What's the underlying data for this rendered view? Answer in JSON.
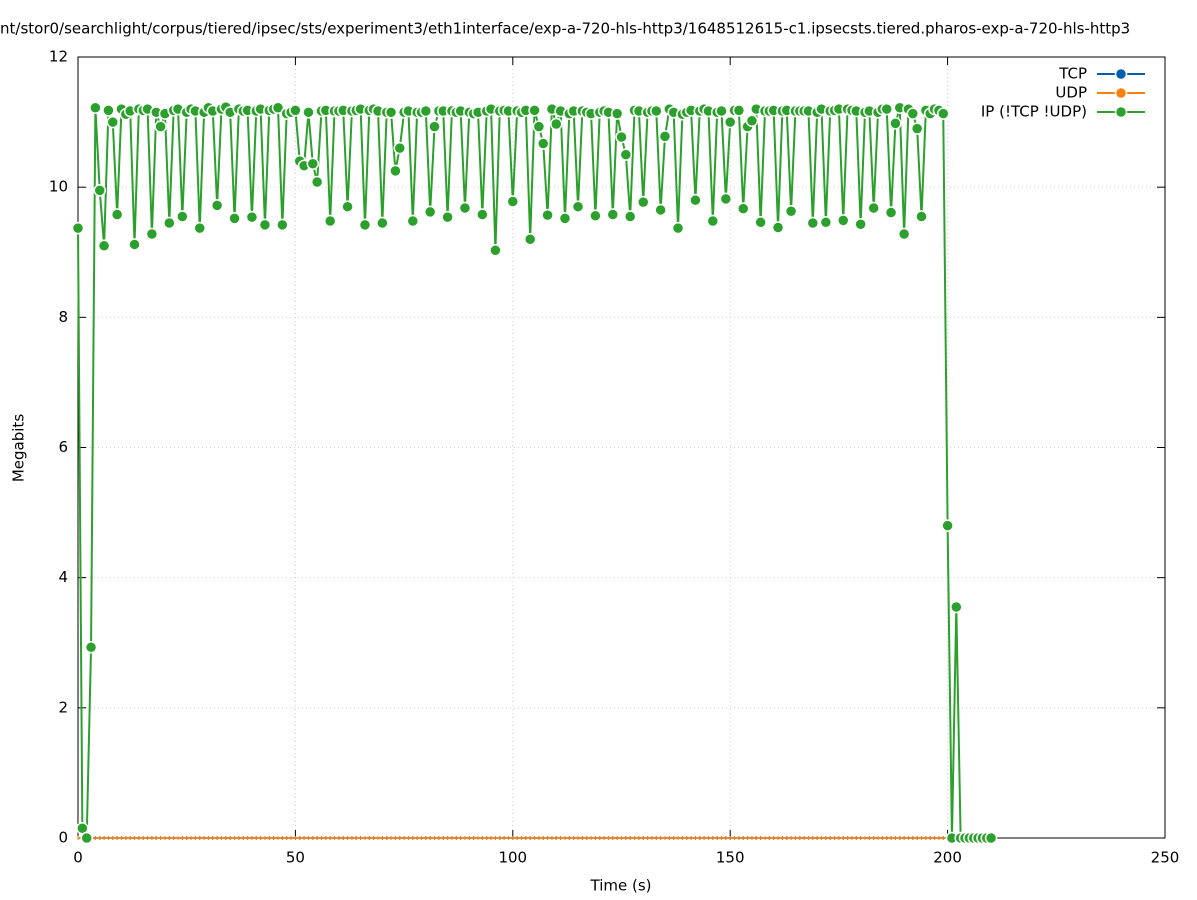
{
  "chart_data": {
    "type": "line",
    "title": "nt/stor0/searchlight/corpus/tiered/ipsec/sts/experiment3/eth1interface/exp-a-720-hls-http3/1648512615-c1.ipsecsts.tiered.pharos-exp-a-720-hls-http3",
    "xlabel": "Time (s)",
    "ylabel": "Megabits",
    "xlim": [
      0,
      250
    ],
    "xticks": [
      0,
      50,
      100,
      150,
      200,
      250
    ],
    "ylim": [
      0,
      12
    ],
    "yticks": [
      0,
      2,
      4,
      6,
      8,
      10,
      12
    ],
    "grid": true,
    "legend": "top-right",
    "x": [
      0,
      1,
      2,
      3,
      4,
      5,
      6,
      7,
      8,
      9,
      10,
      11,
      12,
      13,
      14,
      15,
      16,
      17,
      18,
      19,
      20,
      21,
      22,
      23,
      24,
      25,
      26,
      27,
      28,
      29,
      30,
      31,
      32,
      33,
      34,
      35,
      36,
      37,
      38,
      39,
      40,
      41,
      42,
      43,
      44,
      45,
      46,
      47,
      48,
      49,
      50,
      51,
      52,
      53,
      54,
      55,
      56,
      57,
      58,
      59,
      60,
      61,
      62,
      63,
      64,
      65,
      66,
      67,
      68,
      69,
      70,
      71,
      72,
      73,
      74,
      75,
      76,
      77,
      78,
      79,
      80,
      81,
      82,
      83,
      84,
      85,
      86,
      87,
      88,
      89,
      90,
      91,
      92,
      93,
      94,
      95,
      96,
      97,
      98,
      99,
      100,
      101,
      102,
      103,
      104,
      105,
      106,
      107,
      108,
      109,
      110,
      111,
      112,
      113,
      114,
      115,
      116,
      117,
      118,
      119,
      120,
      121,
      122,
      123,
      124,
      125,
      126,
      127,
      128,
      129,
      130,
      131,
      132,
      133,
      134,
      135,
      136,
      137,
      138,
      139,
      140,
      141,
      142,
      143,
      144,
      145,
      146,
      147,
      148,
      149,
      150,
      151,
      152,
      153,
      154,
      155,
      156,
      157,
      158,
      159,
      160,
      161,
      162,
      163,
      164,
      165,
      166,
      167,
      168,
      169,
      170,
      171,
      172,
      173,
      174,
      175,
      176,
      177,
      178,
      179,
      180,
      181,
      182,
      183,
      184,
      185,
      186,
      187,
      188,
      189,
      190,
      191,
      192,
      193,
      194,
      195,
      196,
      197,
      198,
      199,
      200,
      201,
      202,
      203,
      204,
      205,
      206,
      207,
      208,
      209,
      210
    ],
    "series": [
      {
        "name": "TCP",
        "color": "#0060ad",
        "values": [
          0,
          0,
          0,
          0,
          0,
          0,
          0,
          0,
          0,
          0,
          0,
          0,
          0,
          0,
          0,
          0,
          0,
          0,
          0,
          0,
          0,
          0,
          0,
          0,
          0,
          0,
          0,
          0,
          0,
          0,
          0,
          0,
          0,
          0,
          0,
          0,
          0,
          0,
          0,
          0,
          0,
          0,
          0,
          0,
          0,
          0,
          0,
          0,
          0,
          0,
          0,
          0,
          0,
          0,
          0,
          0,
          0,
          0,
          0,
          0,
          0,
          0,
          0,
          0,
          0,
          0,
          0,
          0,
          0,
          0,
          0,
          0,
          0,
          0,
          0,
          0,
          0,
          0,
          0,
          0,
          0,
          0,
          0,
          0,
          0,
          0,
          0,
          0,
          0,
          0,
          0,
          0,
          0,
          0,
          0,
          0,
          0,
          0,
          0,
          0,
          0,
          0,
          0,
          0,
          0,
          0,
          0,
          0,
          0,
          0,
          0,
          0,
          0,
          0,
          0,
          0,
          0,
          0,
          0,
          0,
          0,
          0,
          0,
          0,
          0,
          0,
          0,
          0,
          0,
          0,
          0,
          0,
          0,
          0,
          0,
          0,
          0,
          0,
          0,
          0,
          0,
          0,
          0,
          0,
          0,
          0,
          0,
          0,
          0,
          0,
          0,
          0,
          0,
          0,
          0,
          0,
          0,
          0,
          0,
          0,
          0,
          0,
          0,
          0,
          0,
          0,
          0,
          0,
          0,
          0,
          0,
          0,
          0,
          0,
          0,
          0,
          0,
          0,
          0,
          0,
          0,
          0,
          0,
          0,
          0,
          0,
          0,
          0,
          0,
          0,
          0,
          0,
          0,
          0,
          0,
          0,
          0,
          0,
          0,
          0,
          0,
          0,
          0,
          0,
          0,
          0,
          0,
          0,
          0,
          0,
          0
        ]
      },
      {
        "name": "UDP",
        "color": "#ff7f0e",
        "values": [
          0,
          0,
          0,
          0,
          0,
          0,
          0,
          0,
          0,
          0,
          0,
          0,
          0,
          0,
          0,
          0,
          0,
          0,
          0,
          0,
          0,
          0,
          0,
          0,
          0,
          0,
          0,
          0,
          0,
          0,
          0,
          0,
          0,
          0,
          0,
          0,
          0,
          0,
          0,
          0,
          0,
          0,
          0,
          0,
          0,
          0,
          0,
          0,
          0,
          0,
          0,
          0,
          0,
          0,
          0,
          0,
          0,
          0,
          0,
          0,
          0,
          0,
          0,
          0,
          0,
          0,
          0,
          0,
          0,
          0,
          0,
          0,
          0,
          0,
          0,
          0,
          0,
          0,
          0,
          0,
          0,
          0,
          0,
          0,
          0,
          0,
          0,
          0,
          0,
          0,
          0,
          0,
          0,
          0,
          0,
          0,
          0,
          0,
          0,
          0,
          0,
          0,
          0,
          0,
          0,
          0,
          0,
          0,
          0,
          0,
          0,
          0,
          0,
          0,
          0,
          0,
          0,
          0,
          0,
          0,
          0,
          0,
          0,
          0,
          0,
          0,
          0,
          0,
          0,
          0,
          0,
          0,
          0,
          0,
          0,
          0,
          0,
          0,
          0,
          0,
          0,
          0,
          0,
          0,
          0,
          0,
          0,
          0,
          0,
          0,
          0,
          0,
          0,
          0,
          0,
          0,
          0,
          0,
          0,
          0,
          0,
          0,
          0,
          0,
          0,
          0,
          0,
          0,
          0,
          0,
          0,
          0,
          0,
          0,
          0,
          0,
          0,
          0,
          0,
          0,
          0,
          0,
          0,
          0,
          0,
          0,
          0,
          0,
          0,
          0,
          0,
          0,
          0,
          0,
          0,
          0,
          0,
          0,
          0,
          0,
          0,
          0,
          0,
          0,
          0,
          0,
          0,
          0,
          0,
          0,
          0
        ]
      },
      {
        "name": "IP (!TCP  !UDP)",
        "color": "#2ca02c",
        "values": [
          9.37,
          0.15,
          0,
          2.93,
          11.22,
          9.95,
          9.1,
          11.18,
          11,
          9.58,
          11.2,
          11.12,
          11.17,
          9.12,
          11.2,
          11.18,
          11.2,
          9.28,
          11.15,
          10.93,
          11.13,
          9.45,
          11.18,
          11.2,
          9.55,
          11.15,
          11.2,
          11.17,
          9.37,
          11.15,
          11.22,
          11.17,
          9.72,
          11.2,
          11.23,
          11.15,
          9.52,
          11.2,
          11.17,
          11.18,
          9.54,
          11.17,
          11.2,
          9.42,
          11.18,
          11.2,
          11.22,
          9.42,
          11.13,
          11.15,
          11.18,
          10.4,
          10.33,
          11.15,
          10.36,
          10.08,
          11.17,
          11.18,
          9.48,
          11.17,
          11.17,
          11.18,
          9.7,
          11.17,
          11.18,
          11.2,
          9.42,
          11.18,
          11.2,
          11.17,
          9.45,
          11.15,
          11.15,
          10.25,
          10.6,
          11.15,
          11.17,
          9.48,
          11.15,
          11.15,
          11.17,
          9.62,
          10.93,
          11.17,
          11.17,
          9.54,
          11.17,
          11.15,
          11.17,
          9.68,
          11.15,
          11.13,
          11.15,
          9.58,
          11.17,
          11.2,
          9.03,
          11.17,
          11.18,
          11.17,
          9.78,
          11.17,
          11.15,
          11.18,
          9.2,
          11.18,
          10.93,
          10.67,
          9.57,
          11.2,
          10.97,
          11.17,
          9.52,
          11.13,
          11.17,
          9.7,
          11.17,
          11.15,
          11.13,
          9.56,
          11.15,
          11.17,
          11.15,
          9.58,
          11.13,
          10.77,
          10.5,
          9.55,
          11.18,
          11.17,
          9.77,
          11.15,
          11.17,
          11.17,
          9.65,
          10.78,
          11.2,
          11.15,
          9.37,
          11.12,
          11.15,
          11.18,
          9.8,
          11.17,
          11.2,
          11.17,
          9.48,
          11.15,
          11.17,
          9.82,
          11,
          11.18,
          11.18,
          9.67,
          10.93,
          11.02,
          11.2,
          9.46,
          11.17,
          11.17,
          11.18,
          9.38,
          11.17,
          11.18,
          9.63,
          11.17,
          11.17,
          11.17,
          11.17,
          9.45,
          11.15,
          11.2,
          9.46,
          11.17,
          11.18,
          11.2,
          9.49,
          11.2,
          11.18,
          11.17,
          9.43,
          11.15,
          11.17,
          9.68,
          11.15,
          11.2,
          11.2,
          9.61,
          10.98,
          11.22,
          9.28,
          11.2,
          11.13,
          10.9,
          9.55,
          11.18,
          11.13,
          11.2,
          11.18,
          11.13,
          4.8,
          0,
          3.55,
          0,
          0,
          0,
          0,
          0,
          0,
          0,
          0
        ]
      }
    ]
  }
}
